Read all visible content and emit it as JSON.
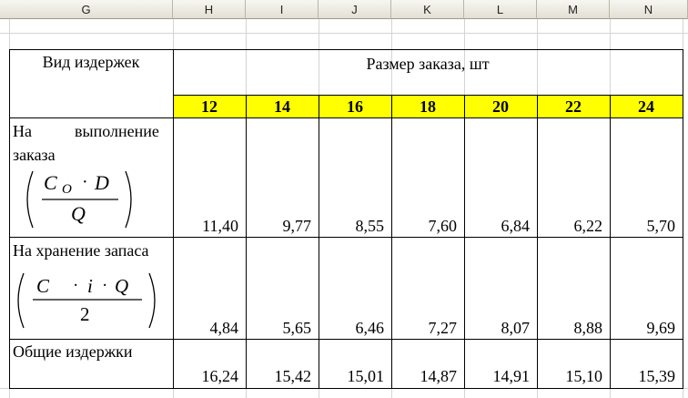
{
  "columns": [
    "G",
    "H",
    "I",
    "J",
    "K",
    "L",
    "M",
    "N"
  ],
  "table": {
    "header_label": "Вид издержек",
    "group_header": "Размер заказа, шт",
    "sizes": [
      "12",
      "14",
      "16",
      "18",
      "20",
      "22",
      "24"
    ],
    "rows": [
      {
        "label_line1_a": "На",
        "label_line1_b": "выполнение",
        "label_line2": "заказа",
        "formula": {
          "c": "C",
          "sub": "O",
          "dot": "·",
          "d": "D",
          "den": "Q"
        },
        "values": [
          "11,40",
          "9,77",
          "8,55",
          "7,60",
          "6,84",
          "6,22",
          "5,70"
        ]
      },
      {
        "label": "На хранение запаса",
        "formula": {
          "c": "C",
          "dot1": "·",
          "i": "i",
          "dot2": "·",
          "q": "Q",
          "den": "2"
        },
        "values": [
          "4,84",
          "5,65",
          "6,46",
          "7,27",
          "8,07",
          "8,88",
          "9,69"
        ]
      },
      {
        "label": "Общие издержки",
        "values": [
          "16,24",
          "15,42",
          "15,01",
          "14,87",
          "14,91",
          "15,10",
          "15,39"
        ]
      }
    ]
  }
}
